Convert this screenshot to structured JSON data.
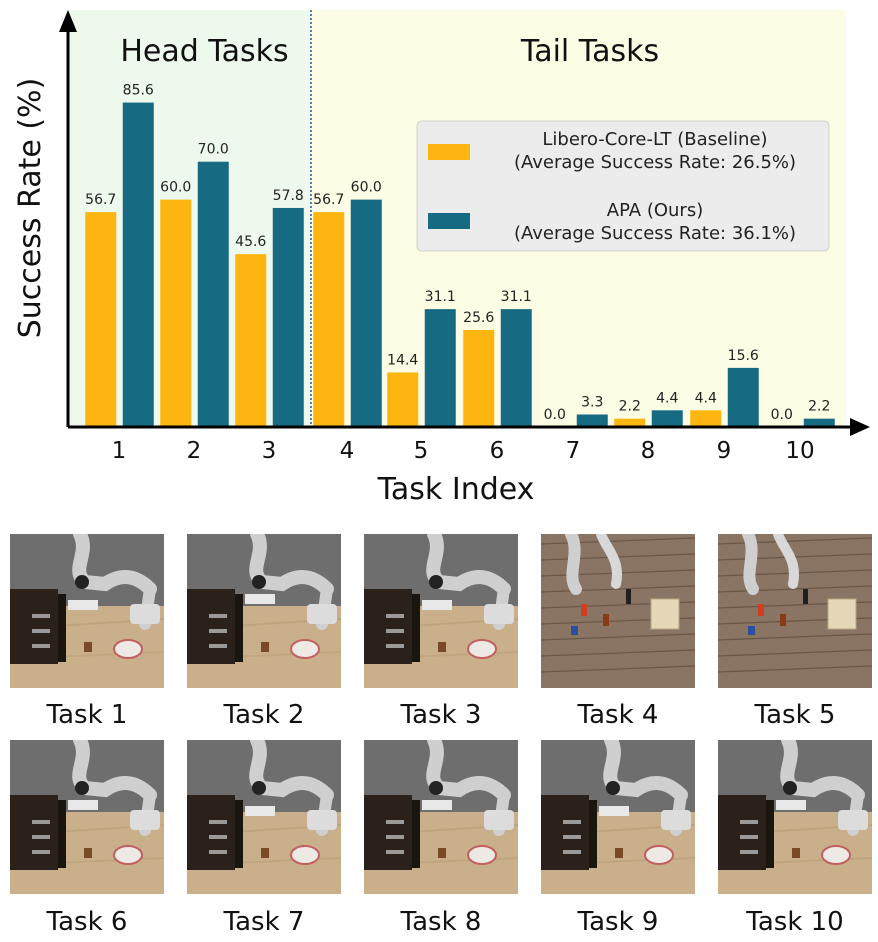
{
  "chart_data": {
    "type": "bar",
    "title": "",
    "xlabel": "Task Index",
    "ylabel": "Success Rate (%)",
    "ylim": [
      0,
      100
    ],
    "grid": false,
    "categories": [
      "1",
      "2",
      "3",
      "4",
      "5",
      "6",
      "7",
      "8",
      "9",
      "10"
    ],
    "series": [
      {
        "name": "Libero-Core-LT (Baseline)",
        "subtitle": "(Average Success Rate: 26.5%)",
        "color": "#fdb50f",
        "values": [
          56.7,
          60.0,
          45.6,
          56.7,
          14.4,
          25.6,
          0.0,
          2.2,
          4.4,
          0.0
        ]
      },
      {
        "name": "APA (Ours)",
        "subtitle": "(Average Success Rate: 36.1%)",
        "color": "#166a82",
        "values": [
          85.6,
          70.0,
          57.8,
          60.0,
          31.1,
          31.1,
          3.3,
          4.4,
          15.6,
          2.2
        ]
      }
    ],
    "regions": [
      {
        "label": "Head Tasks",
        "tasks": [
          1,
          2,
          3
        ],
        "color": "#eef9ee"
      },
      {
        "label": "Tail Tasks",
        "tasks": [
          4,
          5,
          6,
          7,
          8,
          9,
          10
        ],
        "color": "#fdfde5"
      }
    ],
    "legend_position": "top-right"
  },
  "tasks": [
    {
      "label": "Task 1",
      "scene": "kitchen"
    },
    {
      "label": "Task 2",
      "scene": "kitchen"
    },
    {
      "label": "Task 3",
      "scene": "kitchen"
    },
    {
      "label": "Task 4",
      "scene": "floor"
    },
    {
      "label": "Task 5",
      "scene": "floor"
    },
    {
      "label": "Task 6",
      "scene": "kitchen"
    },
    {
      "label": "Task 7",
      "scene": "kitchen"
    },
    {
      "label": "Task 8",
      "scene": "kitchen"
    },
    {
      "label": "Task 9",
      "scene": "kitchen"
    },
    {
      "label": "Task 10",
      "scene": "kitchen"
    }
  ]
}
